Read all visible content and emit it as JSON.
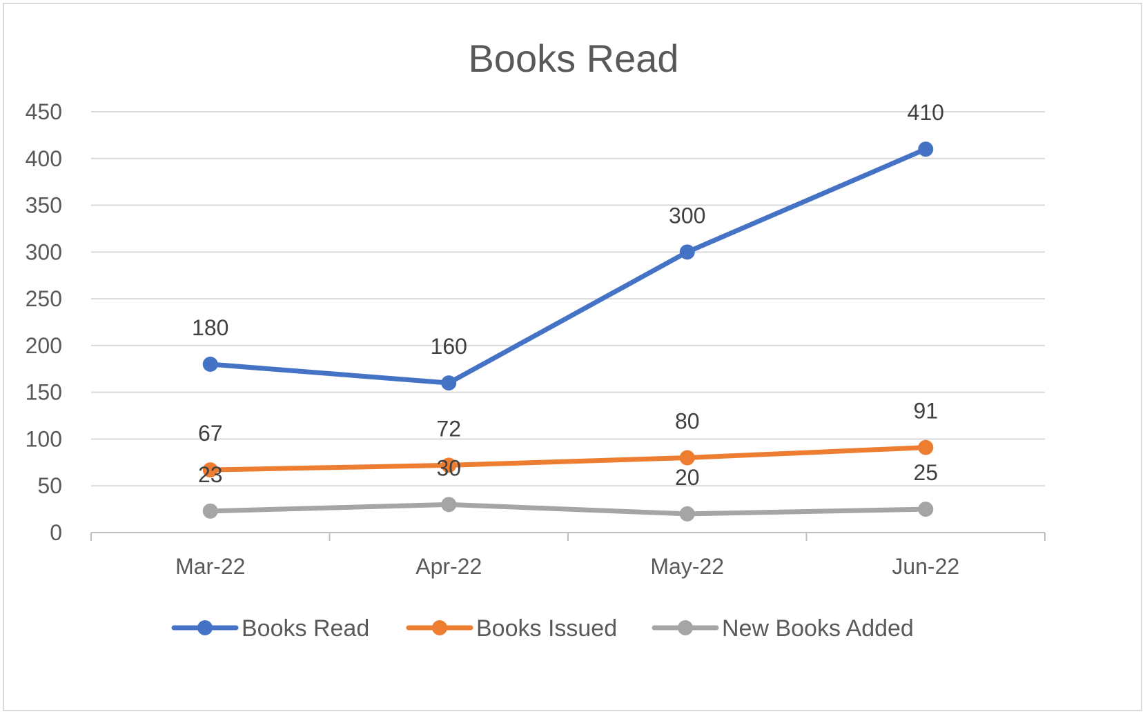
{
  "chart_data": {
    "type": "line",
    "title": "Books Read",
    "categories": [
      "Mar-22",
      "Apr-22",
      "May-22",
      "Jun-22"
    ],
    "ylim": [
      0,
      450
    ],
    "yticks": [
      0,
      50,
      100,
      150,
      200,
      250,
      300,
      350,
      400,
      450
    ],
    "grid": true,
    "legend_position": "bottom",
    "series": [
      {
        "name": "Books Read",
        "values": [
          180,
          160,
          300,
          410
        ],
        "color": "#4472C4"
      },
      {
        "name": "Books Issued",
        "values": [
          67,
          72,
          80,
          91
        ],
        "color": "#ED7D31"
      },
      {
        "name": "New Books Added",
        "values": [
          23,
          30,
          20,
          25
        ],
        "color": "#A5A5A5"
      }
    ]
  }
}
